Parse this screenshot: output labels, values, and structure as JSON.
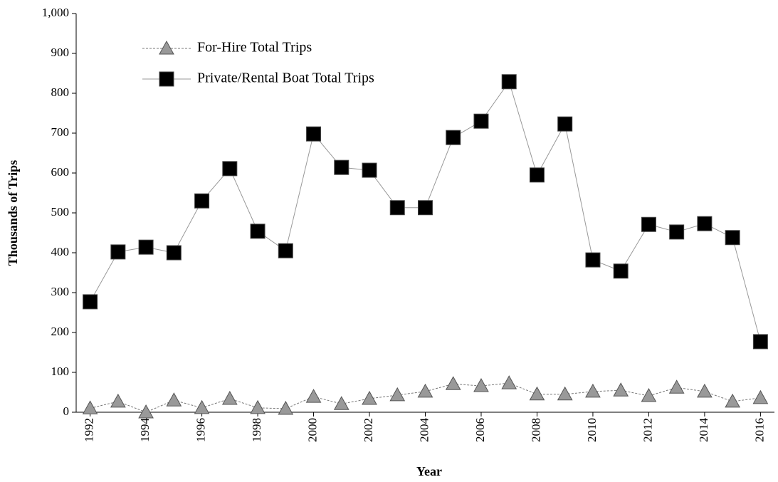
{
  "chart_data": {
    "type": "line",
    "x_label": "Year",
    "y_label": "Thousands of Trips",
    "x": [
      1992,
      1993,
      1994,
      1995,
      1996,
      1997,
      1998,
      1999,
      2000,
      2001,
      2002,
      2003,
      2004,
      2005,
      2006,
      2007,
      2008,
      2009,
      2010,
      2011,
      2012,
      2013,
      2014,
      2015,
      2016
    ],
    "series": [
      {
        "name": "For-Hire Total Trips",
        "color": "#999999",
        "line_color": "#777777",
        "marker": "triangle",
        "line_style": "dotted",
        "values": [
          10,
          27,
          0,
          30,
          11,
          34,
          11,
          9,
          39,
          21,
          34,
          43,
          52,
          71,
          66,
          73,
          45,
          45,
          52,
          55,
          41,
          62,
          52,
          27,
          36
        ]
      },
      {
        "name": "Private/Rental Boat Total Trips",
        "color": "#000000",
        "line_color": "#999999",
        "marker": "square",
        "line_style": "solid",
        "values": [
          277,
          402,
          414,
          400,
          530,
          611,
          454,
          405,
          698,
          614,
          607,
          513,
          513,
          689,
          730,
          829,
          595,
          723,
          382,
          354,
          471,
          452,
          473,
          438,
          177
        ]
      }
    ],
    "xlim": [
      1991.5,
      2016.5
    ],
    "xticks": [
      1992,
      1994,
      1996,
      1998,
      2000,
      2002,
      2004,
      2006,
      2008,
      2010,
      2012,
      2014,
      2016
    ],
    "ylim": [
      0,
      1000
    ],
    "yticks": [
      0,
      100,
      200,
      300,
      400,
      500,
      600,
      700,
      800,
      900,
      {
        "value": 1000,
        "label": "1,000"
      }
    ],
    "legend": "upper left"
  }
}
